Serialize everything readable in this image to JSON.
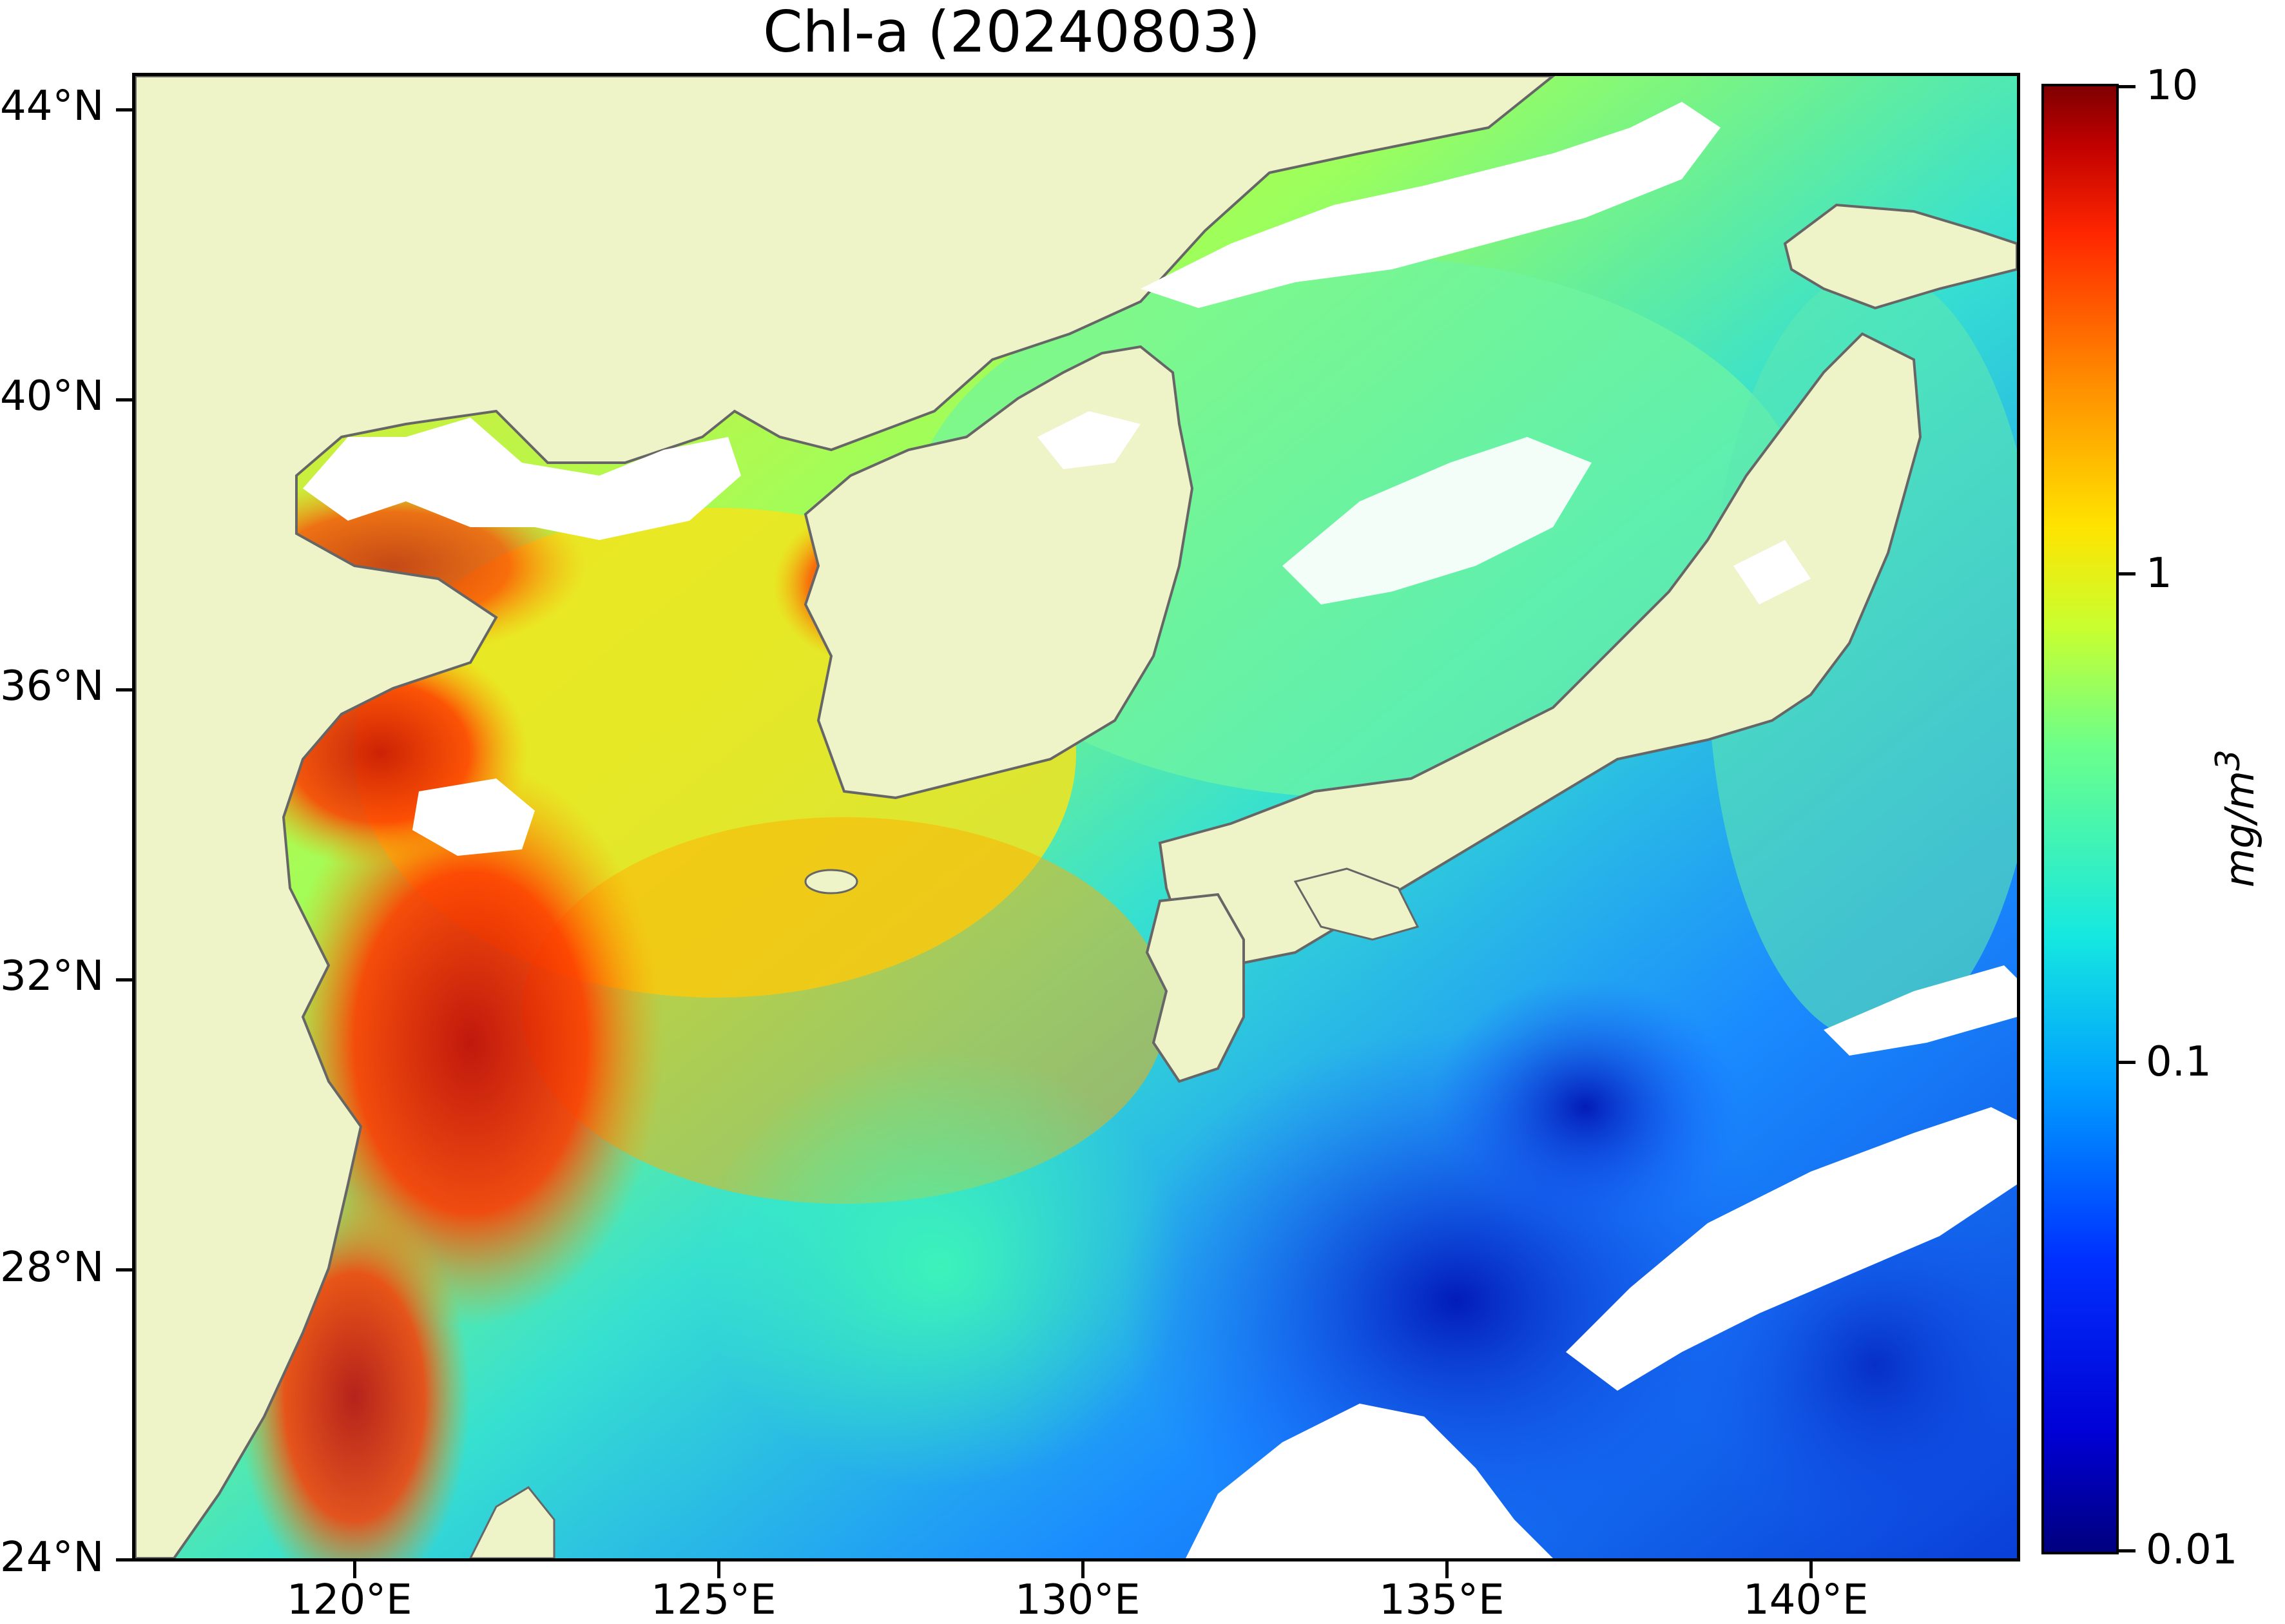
{
  "title": "Chl-a (20240803)",
  "map": {
    "latitude_labels": [
      "44°N",
      "40°N",
      "36°N",
      "32°N",
      "28°N",
      "24°N"
    ],
    "longitude_labels": [
      "120°E",
      "125°E",
      "130°E",
      "135°E",
      "140°E"
    ],
    "land_color": "#eff3c8",
    "no_data_color": "#ffffff",
    "coastline_color": "#666666"
  },
  "colorbar": {
    "labels": [
      "10",
      "1",
      "0.1",
      "0.01"
    ],
    "unit": "mg/m",
    "unit_exponent": "3",
    "scale": "log",
    "range": [
      0.01,
      10
    ],
    "colormap": "jet"
  }
}
